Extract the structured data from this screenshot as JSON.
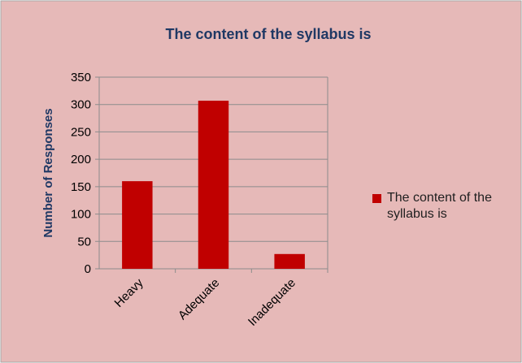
{
  "chart_data": {
    "type": "bar",
    "title": "The content of the syllabus is",
    "ylabel": "Number of Responses",
    "categories": [
      "Heavy",
      "Adequate",
      "Inadequate"
    ],
    "series": [
      {
        "name": "The content of the syllabus is",
        "color": "#c00000",
        "values": [
          160,
          307,
          27
        ]
      }
    ],
    "ylim": [
      0,
      350
    ],
    "yticks": [
      0,
      50,
      100,
      150,
      200,
      250,
      300,
      350
    ],
    "grid": true,
    "legend": "right"
  }
}
